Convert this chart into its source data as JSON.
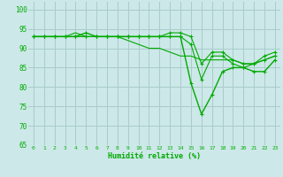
{
  "background_color": "#cce8e8",
  "grid_color": "#aacccc",
  "line_color": "#00aa00",
  "marker_color": "#00aa00",
  "xlabel": "Humidité relative (%)",
  "xlabel_color": "#00aa00",
  "tick_color": "#00aa00",
  "ylim": [
    65,
    102
  ],
  "yticks": [
    65,
    70,
    75,
    80,
    85,
    90,
    95,
    100
  ],
  "xlim": [
    -0.5,
    23.5
  ],
  "xticks": [
    0,
    1,
    2,
    3,
    4,
    5,
    6,
    7,
    8,
    9,
    10,
    11,
    12,
    13,
    14,
    15,
    16,
    17,
    18,
    19,
    20,
    21,
    22,
    23
  ],
  "series": [
    [
      93,
      93,
      93,
      93,
      93,
      94,
      93,
      93,
      93,
      93,
      93,
      93,
      93,
      93,
      93,
      81,
      73,
      78,
      84,
      85,
      85,
      84,
      84,
      87
    ],
    [
      93,
      93,
      93,
      93,
      93,
      93,
      93,
      93,
      93,
      93,
      93,
      93,
      93,
      93,
      93,
      91,
      82,
      88,
      88,
      86,
      85,
      86,
      87,
      88
    ],
    [
      93,
      93,
      93,
      93,
      93,
      93,
      93,
      93,
      93,
      93,
      93,
      93,
      93,
      94,
      94,
      93,
      86,
      89,
      89,
      87,
      86,
      86,
      88,
      89
    ],
    [
      93,
      93,
      93,
      93,
      94,
      93,
      93,
      93,
      93,
      92,
      91,
      90,
      90,
      89,
      88,
      88,
      87,
      87,
      87,
      87,
      86,
      86,
      87,
      88
    ]
  ],
  "series_markers": [
    "+",
    "+",
    "+",
    null
  ],
  "series_lw": [
    1.0,
    0.8,
    0.8,
    0.8
  ],
  "series_ms": [
    3.5,
    3.0,
    3.5,
    0
  ]
}
